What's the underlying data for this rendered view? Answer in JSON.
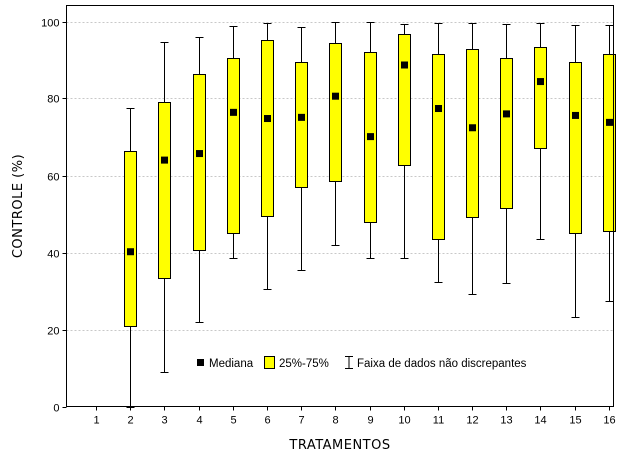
{
  "chart_data": {
    "type": "boxplot",
    "xlabel": "TRATAMENTOS",
    "ylabel": "CONTROLE (%)",
    "ylim": [
      0,
      100
    ],
    "yticks": [
      "0",
      "20",
      "40",
      "60",
      "80",
      "100"
    ],
    "grid": true,
    "legend_position": "bottom-center",
    "legend": {
      "median": "Mediana",
      "box": "25%-75%",
      "whisker": "Faixa de dados não discrepantes"
    },
    "colors": {
      "box_fill": "#ffff00",
      "box_stroke": "#000000",
      "median": "#000000",
      "grid": "#c8c8c8"
    },
    "categories": [
      "1",
      "2",
      "3",
      "4",
      "5",
      "6",
      "7",
      "8",
      "9",
      "10",
      "11",
      "12",
      "13",
      "14",
      "15",
      "16"
    ],
    "boxes": [
      null,
      {
        "min": 0,
        "q1": 21,
        "median": 40.2,
        "q3": 66.4,
        "max": 77.6
      },
      {
        "min": 9,
        "q1": 33.4,
        "median": 64,
        "q3": 79.2,
        "max": 94.6
      },
      {
        "min": 22,
        "q1": 40.7,
        "median": 65.7,
        "q3": 86.4,
        "max": 96
      },
      {
        "min": 38.7,
        "q1": 45,
        "median": 76.4,
        "q3": 90.6,
        "max": 98.8
      },
      {
        "min": 30.6,
        "q1": 49.6,
        "median": 74.8,
        "q3": 95.2,
        "max": 99.6
      },
      {
        "min": 35.4,
        "q1": 57,
        "median": 75.1,
        "q3": 89.6,
        "max": 98.7
      },
      {
        "min": 42,
        "q1": 58.7,
        "median": 80.6,
        "q3": 94.4,
        "max": 99.9
      },
      {
        "min": 38.7,
        "q1": 48,
        "median": 70.1,
        "q3": 92.1,
        "max": 99.9
      },
      {
        "min": 38.7,
        "q1": 62.6,
        "median": 88.7,
        "q3": 96.7,
        "max": 99.4
      },
      {
        "min": 32.3,
        "q1": 43.4,
        "median": 77.4,
        "q3": 91.5,
        "max": 99.6
      },
      {
        "min": 29.1,
        "q1": 49.1,
        "median": 72.4,
        "q3": 92.9,
        "max": 99.6
      },
      {
        "min": 32,
        "q1": 51.5,
        "median": 76,
        "q3": 90.4,
        "max": 99.4
      },
      {
        "min": 43.6,
        "q1": 67.2,
        "median": 84.4,
        "q3": 93.5,
        "max": 99.6
      },
      {
        "min": 23.3,
        "q1": 45,
        "median": 75.6,
        "q3": 89.5,
        "max": 99.1
      },
      {
        "min": 27.4,
        "q1": 45.5,
        "median": 73.8,
        "q3": 91.6,
        "max": 99.1
      }
    ]
  }
}
